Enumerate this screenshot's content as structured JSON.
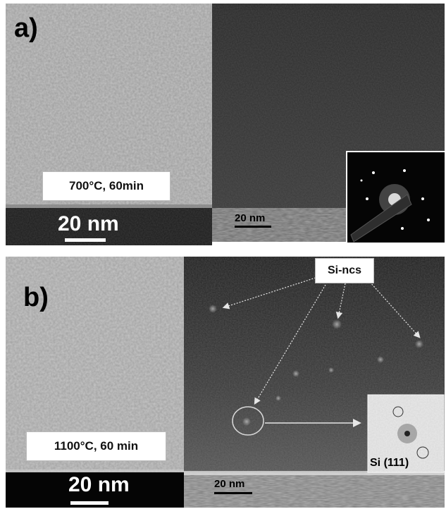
{
  "panel_a": {
    "letter": "a)",
    "condition": "700°C, 60min",
    "scale_left": "20 nm",
    "scale_right": "20 nm"
  },
  "panel_b": {
    "letter": "b)",
    "condition": "1100°C, 60 min",
    "scale_left": "20 nm",
    "scale_right": "20 nm",
    "annotation": "Si-ncs",
    "inset_label": "Si (111)"
  }
}
